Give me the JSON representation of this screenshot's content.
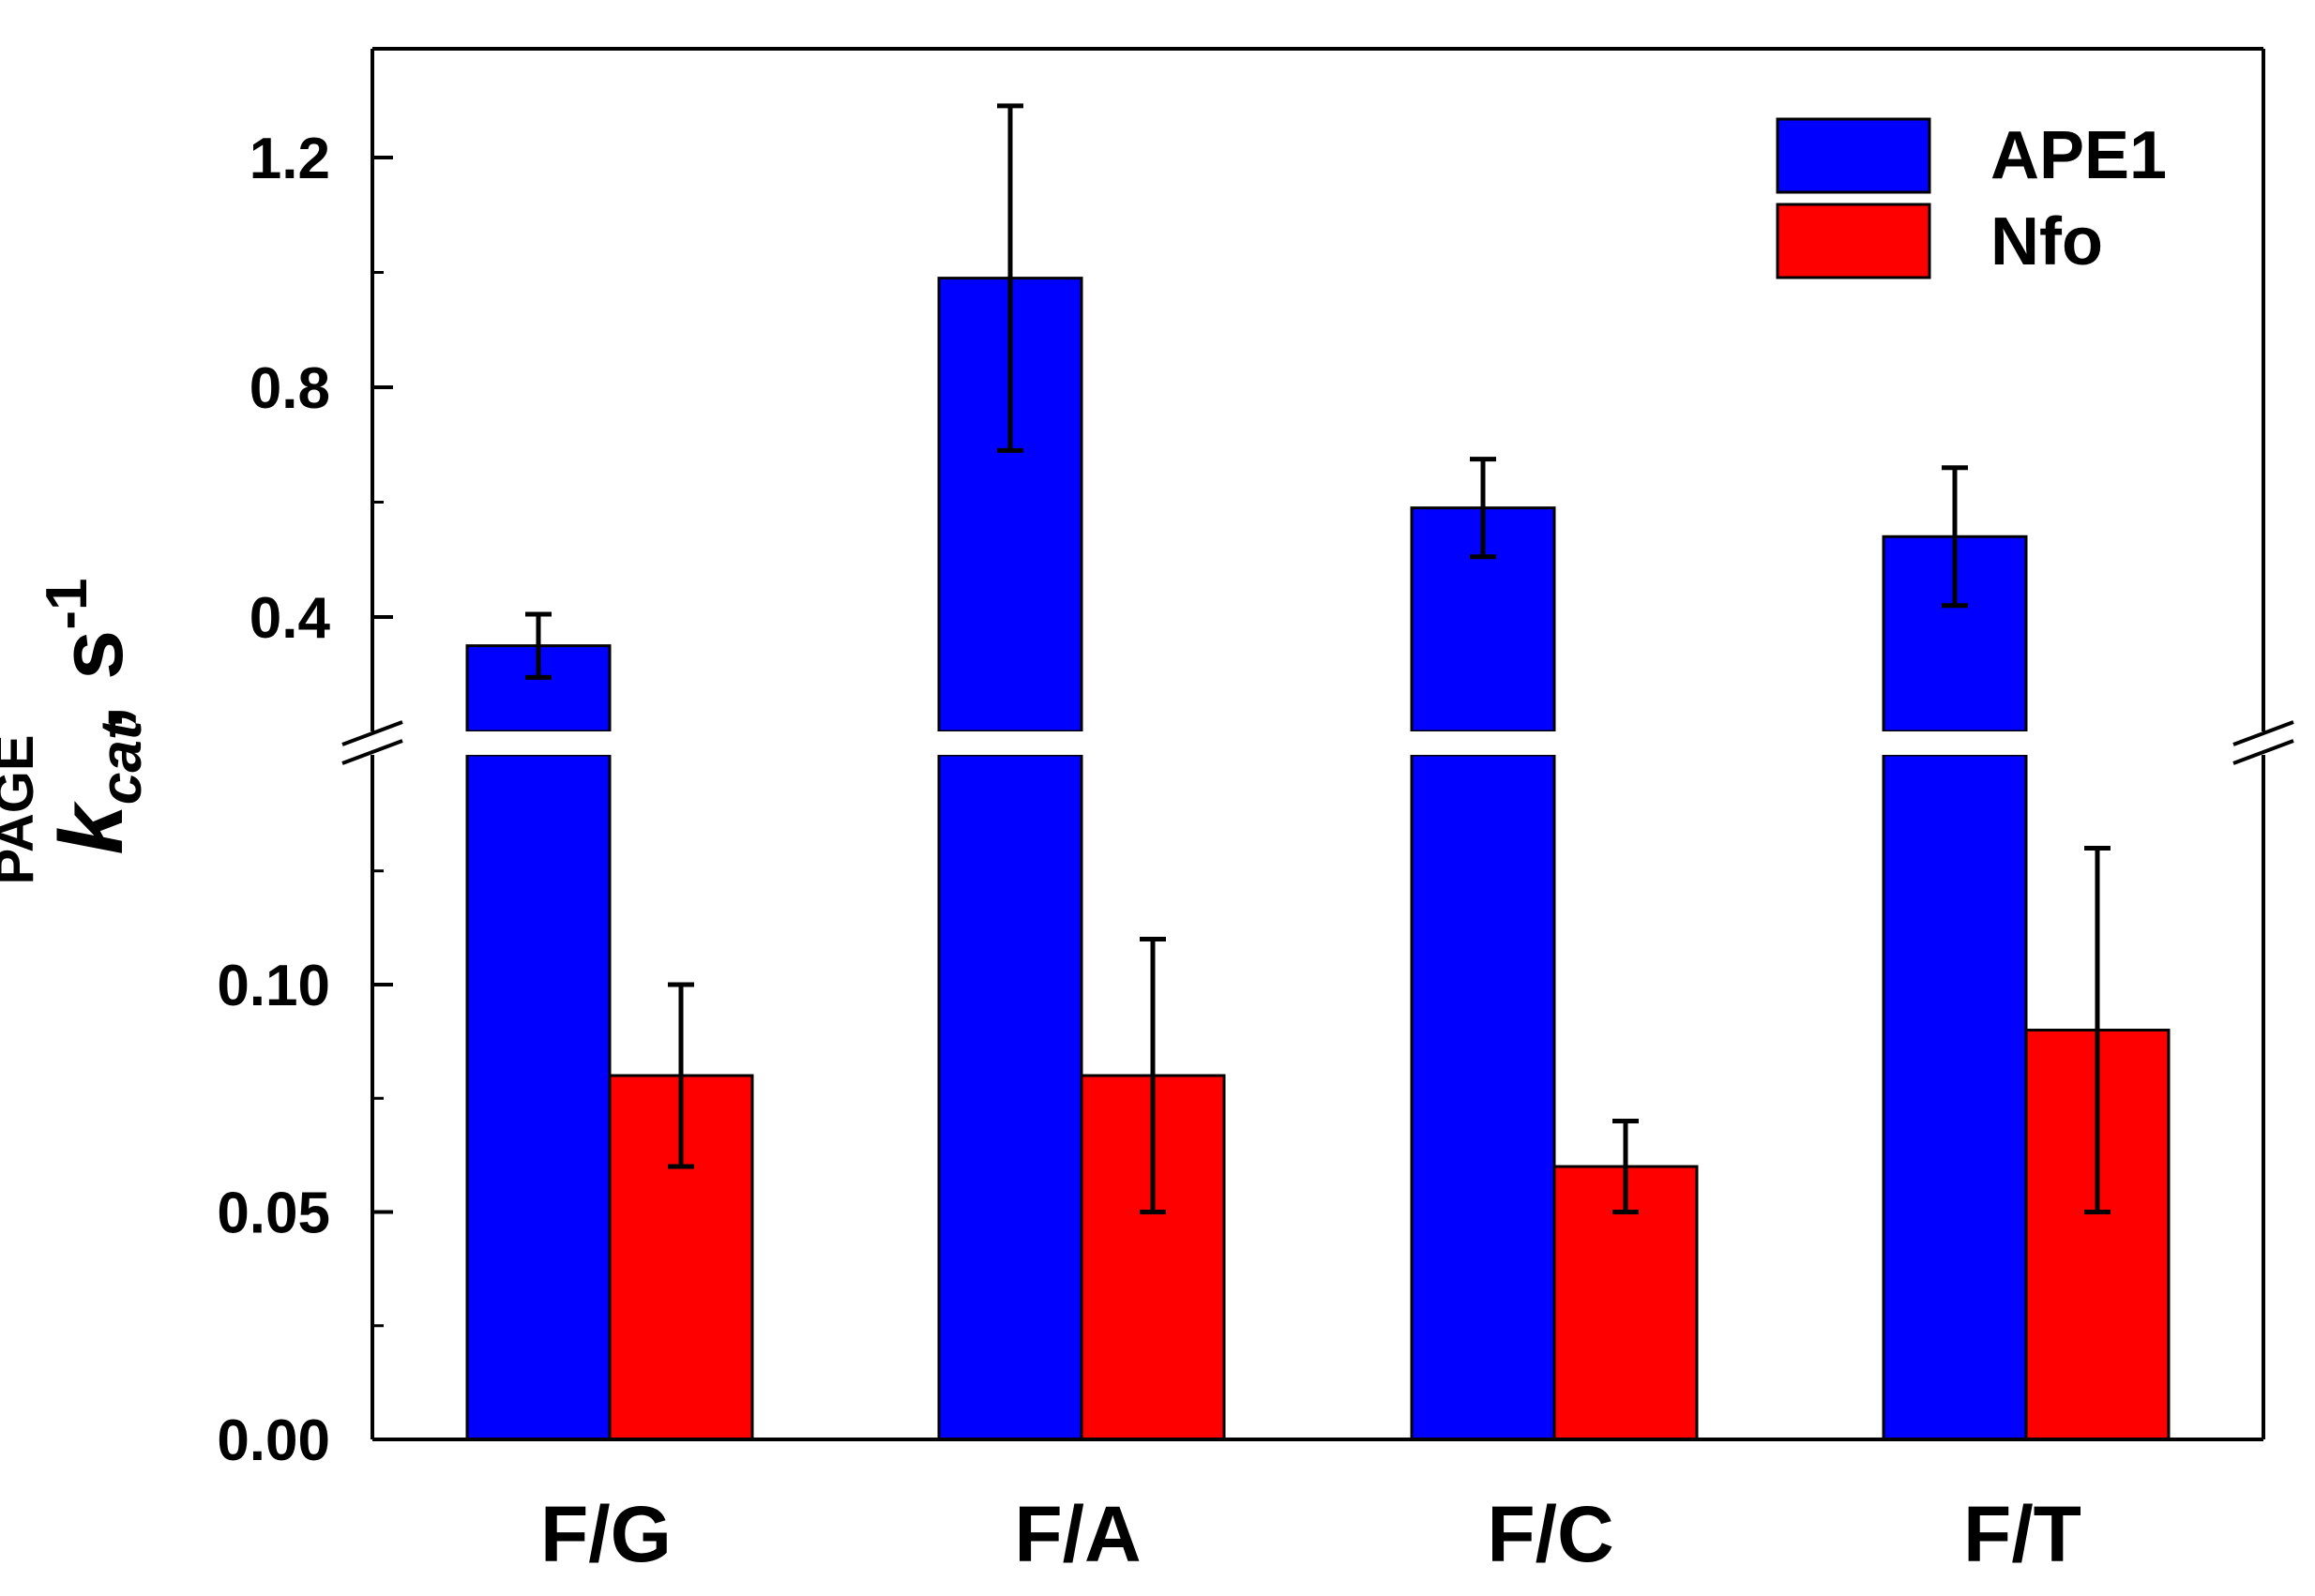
{
  "chart_data": {
    "type": "bar",
    "categories": [
      "F/G",
      "F/A",
      "F/C",
      "F/T"
    ],
    "series": [
      {
        "name": "APE1",
        "color": "#0000ff",
        "values": [
          0.35,
          0.99,
          0.59,
          0.54
        ],
        "errors": [
          0.055,
          0.3,
          0.085,
          0.12
        ]
      },
      {
        "name": "Nfo",
        "color": "#ff0000",
        "values": [
          0.08,
          0.08,
          0.06,
          0.09
        ],
        "errors": [
          0.02,
          0.03,
          0.01,
          0.04
        ]
      }
    ],
    "ylabel": {
      "main": "k",
      "subscript": "cat",
      "superscript": "PAGE",
      "unit": ", s",
      "unit_superscript": "-1"
    },
    "y_axis_broken": true,
    "lower_segment": {
      "range": [
        0.0,
        0.15
      ],
      "ticks": [
        "0.00",
        "0.05",
        "0.10"
      ],
      "tick_values": [
        0.0,
        0.05,
        0.1
      ]
    },
    "upper_segment": {
      "range": [
        0.2,
        1.4
      ],
      "ticks": [
        "0.4",
        "0.8",
        "1.2"
      ],
      "tick_values": [
        0.4,
        0.8,
        1.2
      ]
    },
    "legend_position": "top-right"
  }
}
